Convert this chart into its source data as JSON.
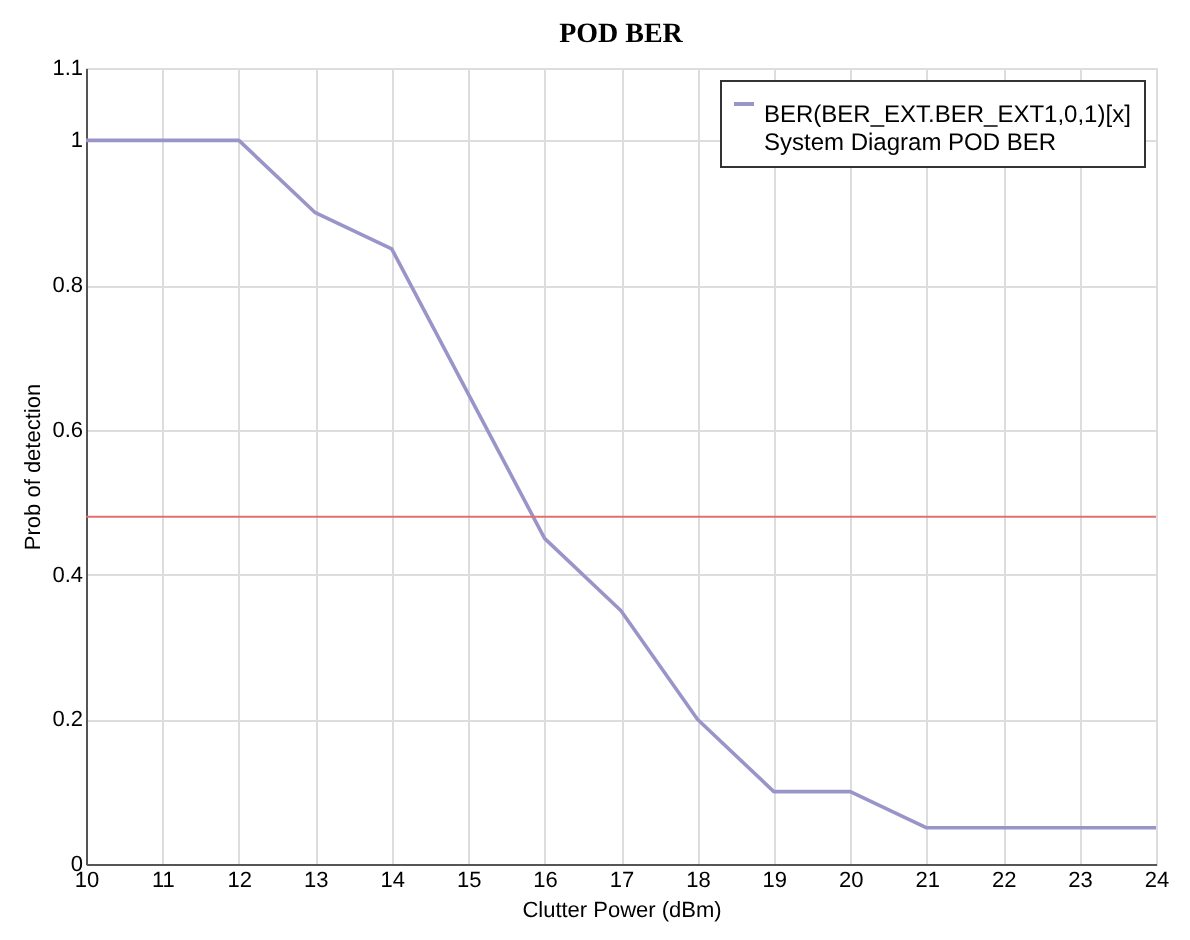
{
  "chart_data": {
    "type": "line",
    "title": "POD BER",
    "xlabel": "Clutter Power (dBm)",
    "ylabel": "Prob of detection",
    "x": [
      10,
      11,
      12,
      13,
      14,
      15,
      16,
      17,
      18,
      19,
      20,
      21,
      22,
      23,
      24
    ],
    "series": [
      {
        "name": "BER(BER_EXT.BER_EXT1,0,1)[x]\nSystem Diagram POD BER",
        "color": "#9a95c9",
        "values": [
          1,
          1,
          1,
          0.9,
          0.85,
          0.65,
          0.45,
          0.35,
          0.2,
          0.1,
          0.1,
          0.05,
          0.05,
          0.05,
          0.05
        ]
      }
    ],
    "xlim": [
      10,
      24
    ],
    "xticks": [
      10,
      11,
      12,
      13,
      14,
      15,
      16,
      17,
      18,
      19,
      20,
      21,
      22,
      23,
      24
    ],
    "ylim": [
      0,
      1.1
    ],
    "yticks": [
      0,
      0.2,
      0.4,
      0.6,
      0.8,
      1,
      1.1
    ],
    "ref_lines": [
      {
        "axis": "y",
        "value": 0.48,
        "color": "#e07070"
      }
    ],
    "grid": true,
    "legend": "top right",
    "marker": "none",
    "line_style": "solid"
  }
}
